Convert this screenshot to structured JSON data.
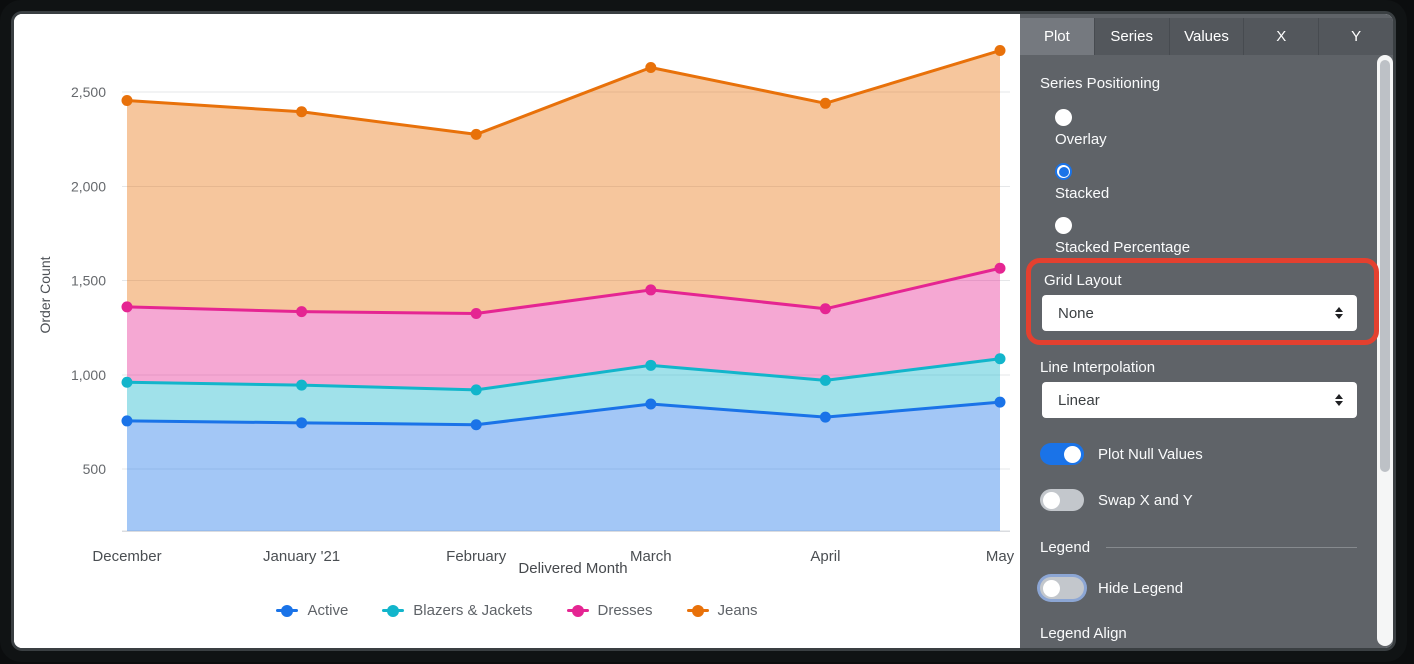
{
  "chart_data": {
    "type": "area",
    "stacked": true,
    "positioning": "Stacked",
    "xlabel": "Delivered Month",
    "ylabel": "Order Count",
    "categories": [
      "December",
      "January '21",
      "February",
      "March",
      "April",
      "May"
    ],
    "series": [
      {
        "name": "Active",
        "color": "#1a73e8",
        "values": [
          755,
          745,
          735,
          845,
          775,
          855
        ]
      },
      {
        "name": "Blazers & Jackets",
        "color": "#12b5cb",
        "values": [
          205,
          200,
          185,
          205,
          195,
          230
        ]
      },
      {
        "name": "Dresses",
        "color": "#e52592",
        "values": [
          400,
          390,
          405,
          400,
          380,
          480
        ]
      },
      {
        "name": "Jeans",
        "color": "#e8710a",
        "values": [
          1095,
          1060,
          950,
          1180,
          1090,
          1155
        ]
      }
    ],
    "stacked_totals": [
      2455,
      2395,
      2275,
      2630,
      2440,
      2720
    ],
    "yticks": [
      500,
      1000,
      1500,
      2000,
      2500
    ],
    "ylim": [
      170,
      2860
    ],
    "grid": "horizontal",
    "legend_position": "bottom"
  },
  "panel": {
    "tabs": {
      "items": [
        "Plot",
        "Series",
        "Values",
        "X",
        "Y"
      ],
      "active": "Plot"
    },
    "series_positioning": {
      "label": "Series Positioning",
      "options": [
        "Overlay",
        "Stacked",
        "Stacked Percentage"
      ],
      "selected": "Stacked"
    },
    "grid_layout": {
      "label": "Grid Layout",
      "value": "None"
    },
    "line_interpolation": {
      "label": "Line Interpolation",
      "value": "Linear"
    },
    "plot_null_values": {
      "label": "Plot Null Values",
      "on": true
    },
    "swap_x_y": {
      "label": "Swap X and Y",
      "on": false
    },
    "legend_section": {
      "label": "Legend"
    },
    "hide_legend": {
      "label": "Hide Legend",
      "on": false
    },
    "legend_align": {
      "label": "Legend Align"
    },
    "colors": {
      "accent": "#1a73e8",
      "highlight_box": "#e4402f",
      "panel_bg": "#5f6368"
    }
  }
}
